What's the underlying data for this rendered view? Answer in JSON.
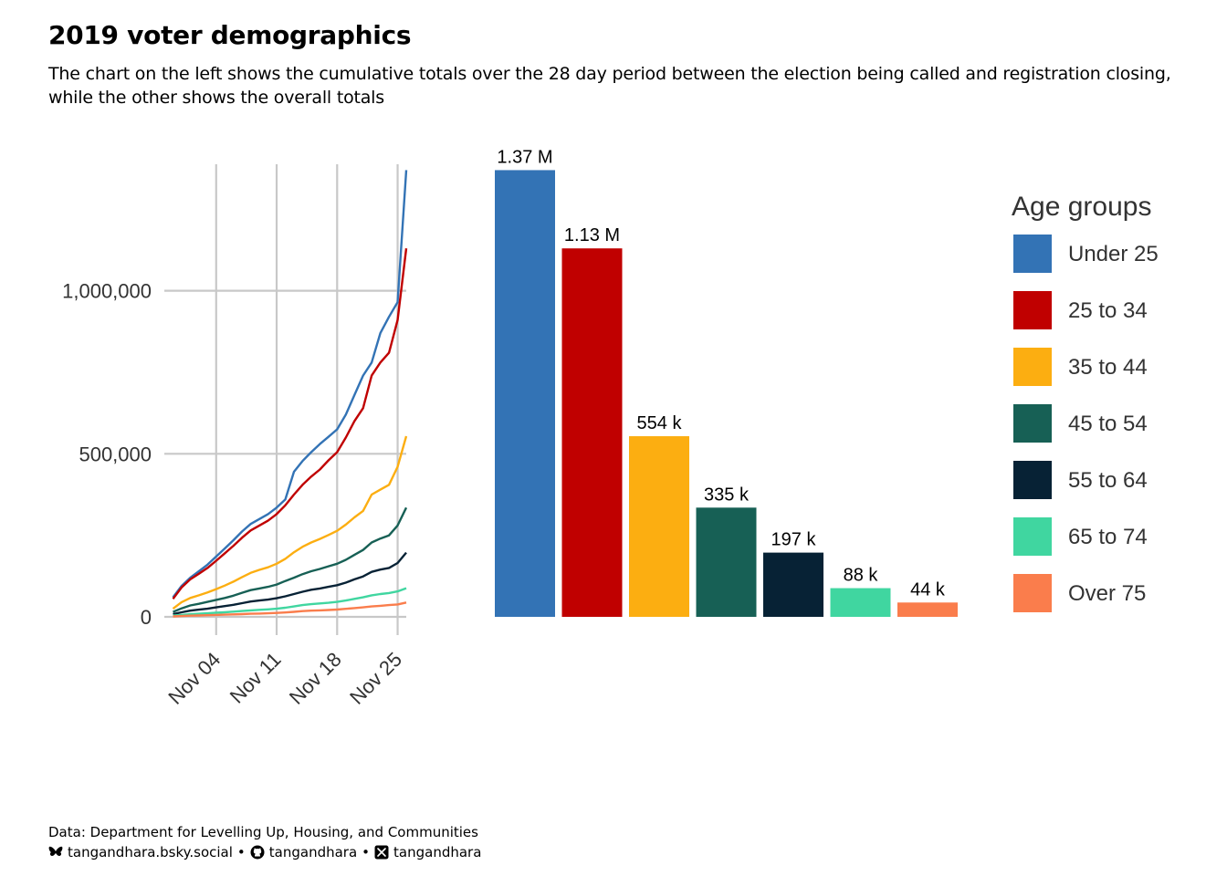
{
  "header": {
    "title": "2019 voter demographics",
    "subtitle": "The chart on the left shows the cumulative totals over the 28 day period between the election being called and registration closing, while the other shows the overall totals"
  },
  "caption": {
    "source": "Data: Department for Levelling Up, Housing, and Communities",
    "bluesky": "tangandhara.bsky.social",
    "github": "tangandhara",
    "x": "tangandhara",
    "separator": "•",
    "icons": [
      "butterfly-icon",
      "github-icon",
      "x-icon"
    ]
  },
  "chart_data": [
    {
      "type": "line",
      "title": "",
      "xlabel": "",
      "ylabel": "",
      "x_type": "date",
      "ylim": [
        0,
        1430000
      ],
      "xlim": [
        "2019-10-29",
        "2019-11-26"
      ],
      "x_ticks": [
        {
          "date": "2019-11-04",
          "label": "Nov 04"
        },
        {
          "date": "2019-11-11",
          "label": "Nov 11"
        },
        {
          "date": "2019-11-18",
          "label": "Nov 18"
        },
        {
          "date": "2019-11-25",
          "label": "Nov 25"
        }
      ],
      "y_ticks": [
        {
          "value": 0,
          "label": "0"
        },
        {
          "value": 500000,
          "label": "500,000"
        },
        {
          "value": 1000000,
          "label": "1,000,000"
        }
      ],
      "grid": true,
      "x": [
        "2019-10-30",
        "2019-10-31",
        "2019-11-01",
        "2019-11-02",
        "2019-11-03",
        "2019-11-04",
        "2019-11-05",
        "2019-11-06",
        "2019-11-07",
        "2019-11-08",
        "2019-11-09",
        "2019-11-10",
        "2019-11-11",
        "2019-11-12",
        "2019-11-13",
        "2019-11-14",
        "2019-11-15",
        "2019-11-16",
        "2019-11-17",
        "2019-11-18",
        "2019-11-19",
        "2019-11-20",
        "2019-11-21",
        "2019-11-22",
        "2019-11-23",
        "2019-11-24",
        "2019-11-25",
        "2019-11-26"
      ],
      "series": [
        {
          "name": "Under 25",
          "color": "#3373b5",
          "values": [
            60000,
            95000,
            120000,
            140000,
            160000,
            185000,
            210000,
            235000,
            262000,
            285000,
            300000,
            315000,
            335000,
            360000,
            445000,
            478000,
            505000,
            530000,
            552000,
            575000,
            620000,
            680000,
            740000,
            780000,
            870000,
            920000,
            965000,
            1370000
          ]
        },
        {
          "name": "25 to 34",
          "color": "#c00000",
          "values": [
            55000,
            90000,
            115000,
            132000,
            150000,
            172000,
            195000,
            218000,
            243000,
            265000,
            280000,
            295000,
            315000,
            342000,
            375000,
            405000,
            430000,
            452000,
            480000,
            505000,
            550000,
            600000,
            640000,
            740000,
            780000,
            810000,
            910000,
            1130000
          ]
        },
        {
          "name": "35 to 44",
          "color": "#fcae11",
          "values": [
            25000,
            45000,
            58000,
            66000,
            75000,
            85000,
            96000,
            108000,
            122000,
            135000,
            144000,
            152000,
            163000,
            178000,
            198000,
            215000,
            228000,
            239000,
            251000,
            264000,
            283000,
            305000,
            325000,
            375000,
            390000,
            405000,
            460000,
            554000
          ]
        },
        {
          "name": "45 to 54",
          "color": "#176055",
          "values": [
            15000,
            26000,
            35000,
            40000,
            46000,
            52000,
            58000,
            65000,
            74000,
            82000,
            87000,
            92000,
            99000,
            110000,
            120000,
            131000,
            140000,
            147000,
            155000,
            163000,
            175000,
            190000,
            205000,
            228000,
            240000,
            250000,
            280000,
            335000
          ]
        },
        {
          "name": "55 to 64",
          "color": "#072235",
          "values": [
            8000,
            14000,
            19000,
            22000,
            25000,
            29000,
            33000,
            37000,
            42000,
            47000,
            50000,
            53000,
            57000,
            63000,
            70000,
            77000,
            83000,
            87000,
            92000,
            97000,
            105000,
            115000,
            124000,
            138000,
            145000,
            150000,
            165000,
            197000
          ]
        },
        {
          "name": "65 to 74",
          "color": "#40d6a0",
          "values": [
            4000,
            6000,
            8000,
            9500,
            11000,
            12500,
            14000,
            16000,
            18000,
            20000,
            21500,
            23000,
            25000,
            28000,
            32000,
            36000,
            39000,
            41000,
            43000,
            46000,
            50000,
            55000,
            60000,
            66000,
            70000,
            73000,
            78000,
            88000
          ]
        },
        {
          "name": "Over 75",
          "color": "#fa7d4c",
          "values": [
            1500,
            2500,
            3500,
            4200,
            5000,
            5800,
            6600,
            7500,
            8500,
            9500,
            10200,
            11000,
            12000,
            13500,
            15500,
            17500,
            19000,
            20000,
            21000,
            22500,
            24500,
            27000,
            29000,
            32000,
            34000,
            36000,
            38000,
            44000
          ]
        }
      ]
    },
    {
      "type": "bar",
      "title": "",
      "xlabel": "",
      "ylabel": "",
      "ylim": [
        0,
        1430000
      ],
      "grid": false,
      "categories": [
        "Under 25",
        "25 to 34",
        "35 to 44",
        "45 to 54",
        "55 to 64",
        "65 to 74",
        "Over 75"
      ],
      "values": [
        1370000,
        1130000,
        554000,
        335000,
        197000,
        88000,
        44000
      ],
      "data_labels": [
        "1.37 M",
        "1.13 M",
        "554 k",
        "335 k",
        "197 k",
        "88 k",
        "44 k"
      ],
      "colors": [
        "#3373b5",
        "#c00000",
        "#fcae11",
        "#176055",
        "#072235",
        "#40d6a0",
        "#fa7d4c"
      ],
      "legend": {
        "title": "Age groups",
        "position": "right",
        "entries": [
          "Under 25",
          "25 to 34",
          "35 to 44",
          "45 to 54",
          "55 to 64",
          "65 to 74",
          "Over 75"
        ]
      }
    }
  ]
}
